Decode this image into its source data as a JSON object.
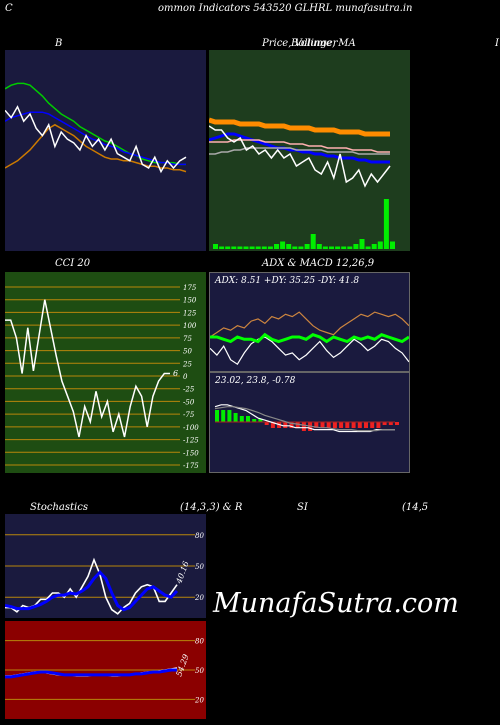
{
  "header": {
    "title": "ommon  Indicators 543520  GLHRL  munafasutra.in",
    "left_char": "C"
  },
  "titles": {
    "bb": "B",
    "price": "Price,  Volume,  MA",
    "price_overlay": "Bollinger",
    "right_edge": "I",
    "cci": "CCI 20",
    "adx_macd": "ADX  & MACD 12,26,9",
    "stoch_left": "Stochastics",
    "stoch_params": "(14,3,3) & R",
    "rsi": "SI",
    "rsi_params": "(14,5"
  },
  "watermark": "MunafaSutra.com",
  "colors": {
    "navy": "#1a1a3e",
    "green_panel": "#1e3d1e",
    "cci_bg": "#1e4d12",
    "rsi_bg": "#8b0000",
    "grid": "#b8860b"
  },
  "chart_data": [
    {
      "id": "bollinger",
      "type": "line",
      "title": "B",
      "x": [
        0,
        1,
        2,
        3,
        4,
        5,
        6,
        7,
        8,
        9,
        10,
        11,
        12,
        13,
        14,
        15,
        16,
        17,
        18,
        19,
        20,
        21,
        22,
        23,
        24,
        25,
        26,
        27,
        28,
        29
      ],
      "series": [
        {
          "role": "upper",
          "color": "#00cc00",
          "values": [
            84,
            86,
            87,
            87,
            86,
            83,
            80,
            76,
            73,
            70,
            68,
            66,
            63,
            61,
            59,
            57,
            55,
            54,
            52,
            50,
            48,
            47,
            45,
            44,
            43,
            43,
            43,
            43,
            42,
            42
          ]
        },
        {
          "role": "middle",
          "color": "#0000ff",
          "values": [
            66,
            68,
            69,
            70,
            71,
            71,
            71,
            70,
            68,
            66,
            64,
            62,
            60,
            58,
            56,
            55,
            53,
            52,
            51,
            49,
            48,
            47,
            46,
            45,
            44,
            43,
            43,
            42,
            42,
            42
          ]
        },
        {
          "role": "lower",
          "color": "#cc7a00",
          "values": [
            40,
            42,
            44,
            47,
            50,
            54,
            58,
            62,
            64,
            62,
            60,
            58,
            55,
            52,
            50,
            48,
            46,
            45,
            45,
            44,
            44,
            43,
            42,
            41,
            41,
            40,
            40,
            39,
            39,
            38
          ]
        },
        {
          "role": "price",
          "color": "#ffffff",
          "values": [
            72,
            68,
            74,
            66,
            70,
            62,
            58,
            64,
            52,
            60,
            56,
            54,
            50,
            58,
            52,
            56,
            50,
            56,
            48,
            46,
            44,
            52,
            42,
            40,
            46,
            38,
            44,
            40,
            44,
            46
          ]
        }
      ]
    },
    {
      "id": "price",
      "type": "line",
      "title": "Price,  Volume,  MA",
      "x": [
        0,
        1,
        2,
        3,
        4,
        5,
        6,
        7,
        8,
        9,
        10,
        11,
        12,
        13,
        14,
        15,
        16,
        17,
        18,
        19,
        20,
        21,
        22,
        23,
        24,
        25,
        26,
        27,
        28,
        29
      ],
      "series": [
        {
          "role": "ma-orange",
          "color": "#ff8c00",
          "values": [
            75,
            74,
            74,
            74,
            74,
            73,
            73,
            73,
            73,
            72,
            72,
            72,
            72,
            71,
            71,
            71,
            71,
            70,
            70,
            70,
            70,
            69,
            69,
            69,
            69,
            68,
            68,
            68,
            68,
            68
          ]
        },
        {
          "role": "ma-blue",
          "color": "#0000ff",
          "values": [
            65,
            66,
            67,
            68,
            68,
            67,
            66,
            65,
            64,
            63,
            62,
            61,
            61,
            60,
            60,
            59,
            59,
            58,
            58,
            57,
            57,
            56,
            56,
            56,
            55,
            55,
            54,
            54,
            54,
            54
          ]
        },
        {
          "role": "ma-pink",
          "color": "#ffb0b0",
          "values": [
            64,
            64,
            64,
            64,
            65,
            65,
            65,
            65,
            65,
            64,
            64,
            64,
            64,
            63,
            63,
            63,
            62,
            62,
            62,
            61,
            61,
            61,
            61,
            60,
            60,
            60,
            60,
            59,
            59,
            59
          ]
        },
        {
          "role": "ma-grey",
          "color": "#aaaaaa",
          "values": [
            58,
            58,
            59,
            59,
            60,
            60,
            61,
            61,
            61,
            61,
            61,
            61,
            61,
            61,
            60,
            60,
            60,
            60,
            60,
            59,
            59,
            59,
            59,
            59,
            58,
            58,
            58,
            58,
            58,
            58
          ]
        },
        {
          "role": "price",
          "color": "#ffffff",
          "values": [
            72,
            70,
            70,
            66,
            64,
            66,
            60,
            62,
            58,
            60,
            56,
            60,
            56,
            58,
            52,
            54,
            56,
            50,
            48,
            54,
            46,
            58,
            44,
            46,
            50,
            42,
            48,
            44,
            48,
            52
          ]
        }
      ],
      "volume": [
        2,
        1,
        1,
        1,
        1,
        1,
        1,
        1,
        1,
        1,
        2,
        3,
        2,
        1,
        1,
        2,
        6,
        2,
        1,
        1,
        1,
        1,
        1,
        2,
        4,
        1,
        2,
        3,
        20,
        3
      ]
    },
    {
      "id": "cci",
      "type": "line",
      "title": "CCI 20",
      "ylim": [
        -175,
        175
      ],
      "ytick_labels": [
        "175",
        "150",
        "125",
        "100",
        "75",
        "50",
        "25",
        "0",
        "-25",
        "-50",
        "-75",
        "-100",
        "-125",
        "-150",
        "-175"
      ],
      "x": [
        0,
        1,
        2,
        3,
        4,
        5,
        6,
        7,
        8,
        9,
        10,
        11,
        12,
        13,
        14,
        15,
        16,
        17,
        18,
        19,
        20,
        21,
        22,
        23,
        24,
        25,
        26,
        27,
        28,
        29
      ],
      "series": [
        {
          "color": "#ffffff",
          "values": [
            110,
            110,
            75,
            5,
            95,
            10,
            80,
            150,
            95,
            40,
            -10,
            -40,
            -70,
            -120,
            -60,
            -90,
            -30,
            -80,
            -50,
            -110,
            -75,
            -120,
            -60,
            -20,
            -40,
            -100,
            -40,
            -10,
            5,
            5
          ]
        }
      ],
      "annotations": [
        "6"
      ]
    },
    {
      "id": "adx",
      "type": "line",
      "title": "ADX  & MACD 12,26,9",
      "subtitle": "ADX: 8.51 +DY: 35.25 -DY: 41.8",
      "x": [
        0,
        1,
        2,
        3,
        4,
        5,
        6,
        7,
        8,
        9,
        10,
        11,
        12,
        13,
        14,
        15,
        16,
        17,
        18,
        19,
        20,
        21,
        22,
        23,
        24,
        25,
        26,
        27,
        28,
        29
      ],
      "series": [
        {
          "role": "+DI",
          "color": "#cd853f",
          "values": [
            30,
            34,
            38,
            36,
            40,
            38,
            44,
            46,
            42,
            48,
            46,
            50,
            48,
            52,
            46,
            40,
            36,
            34,
            32,
            38,
            42,
            46,
            50,
            48,
            52,
            50,
            48,
            50,
            46,
            40
          ]
        },
        {
          "role": "-DI",
          "color": "#ffffff",
          "values": [
            20,
            14,
            22,
            10,
            6,
            16,
            24,
            28,
            30,
            26,
            20,
            14,
            16,
            10,
            14,
            20,
            26,
            18,
            12,
            16,
            22,
            28,
            24,
            18,
            22,
            28,
            26,
            20,
            16,
            8
          ]
        },
        {
          "role": "ADX",
          "color": "#00ff00",
          "values": [
            30,
            30,
            28,
            26,
            30,
            28,
            28,
            26,
            32,
            28,
            26,
            28,
            30,
            30,
            28,
            32,
            30,
            26,
            30,
            28,
            26,
            30,
            28,
            30,
            28,
            32,
            30,
            28,
            26,
            30
          ]
        }
      ]
    },
    {
      "id": "macd",
      "type": "bar",
      "subtitle": "23.02,  23.8,  -0.78",
      "x": [
        0,
        1,
        2,
        3,
        4,
        5,
        6,
        7,
        8,
        9,
        10,
        11,
        12,
        13,
        14,
        15,
        16,
        17,
        18,
        19,
        20,
        21,
        22,
        23,
        24,
        25,
        26,
        27,
        28,
        29
      ],
      "series": [
        {
          "role": "macd",
          "color": "#ffffff",
          "values": [
            18,
            20,
            20,
            18,
            16,
            14,
            10,
            6,
            4,
            2,
            0,
            -2,
            -2,
            -4,
            -4,
            -4,
            -6,
            -6,
            -6,
            -6,
            -8,
            -8,
            -8,
            -8,
            -8,
            -8,
            -6,
            -6,
            -6,
            -6
          ]
        },
        {
          "role": "signal",
          "color": "#888888",
          "values": [
            16,
            17,
            18,
            18,
            17,
            16,
            14,
            12,
            9,
            7,
            5,
            3,
            1,
            0,
            -1,
            -2,
            -3,
            -4,
            -4,
            -5,
            -6,
            -6,
            -6,
            -7,
            -7,
            -7,
            -7,
            -6,
            -6,
            -6
          ]
        },
        {
          "role": "histogram",
          "values": [
            4,
            4,
            4,
            3,
            2,
            2,
            1,
            1,
            -1,
            -2,
            -2,
            -2,
            -2,
            -2,
            -3,
            -3,
            -2,
            -2,
            -2,
            -2,
            -2,
            -2,
            -2,
            -2,
            -2,
            -2,
            -2,
            -1,
            -1,
            -1
          ]
        }
      ]
    },
    {
      "id": "stochastics",
      "type": "line",
      "title": "Stochastics",
      "ylim": [
        0,
        100
      ],
      "ytick_labels": [
        "80",
        "50",
        "20"
      ],
      "x": [
        0,
        1,
        2,
        3,
        4,
        5,
        6,
        7,
        8,
        9,
        10,
        11,
        12,
        13,
        14,
        15,
        16,
        17,
        18,
        19,
        20,
        21,
        22,
        23,
        24,
        25,
        26,
        27,
        28,
        29
      ],
      "series": [
        {
          "role": "%K",
          "color": "#ffffff",
          "values": [
            10,
            10,
            6,
            12,
            10,
            12,
            18,
            18,
            24,
            24,
            20,
            28,
            20,
            30,
            40,
            56,
            42,
            20,
            8,
            4,
            10,
            14,
            24,
            30,
            32,
            30,
            16,
            16,
            24,
            32
          ]
        },
        {
          "role": "%D",
          "color": "#0000ff",
          "values": [
            12,
            11,
            9,
            9,
            9,
            11,
            13,
            16,
            20,
            22,
            22,
            24,
            23,
            26,
            30,
            38,
            44,
            38,
            24,
            12,
            8,
            10,
            16,
            22,
            28,
            30,
            26,
            22,
            20,
            26
          ]
        }
      ],
      "annotations": [
        "40.16"
      ]
    },
    {
      "id": "rsi",
      "type": "line",
      "title": "SI",
      "ylim": [
        0,
        100
      ],
      "ytick_labels": [
        "80",
        "50",
        "20"
      ],
      "x": [
        0,
        1,
        2,
        3,
        4,
        5,
        6,
        7,
        8,
        9,
        10,
        11,
        12,
        13,
        14,
        15,
        16,
        17,
        18,
        19,
        20,
        21,
        22,
        23,
        24,
        25,
        26,
        27,
        28,
        29
      ],
      "series": [
        {
          "role": "rsi",
          "color": "#ffffff",
          "values": [
            44,
            44,
            45,
            46,
            47,
            48,
            48,
            47,
            46,
            45,
            45,
            45,
            44,
            44,
            44,
            45,
            45,
            45,
            44,
            44,
            45,
            45,
            46,
            47,
            48,
            48,
            49,
            50,
            51,
            52
          ]
        },
        {
          "role": "rsi-ma",
          "color": "#0000ff",
          "values": [
            43,
            43,
            44,
            45,
            46,
            47,
            48,
            48,
            47,
            46,
            45,
            45,
            45,
            45,
            45,
            45,
            45,
            45,
            45,
            45,
            45,
            45,
            46,
            46,
            47,
            48,
            48,
            49,
            50,
            50
          ]
        }
      ],
      "annotations": [
        "54.29"
      ]
    }
  ]
}
